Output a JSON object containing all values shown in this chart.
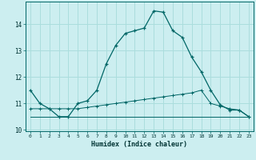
{
  "xlabel": "Humidex (Indice chaleur)",
  "background_color": "#cceef0",
  "grid_color": "#aadddd",
  "line_color": "#006666",
  "xlim": [
    -0.5,
    23.5
  ],
  "ylim": [
    9.95,
    14.85
  ],
  "yticks": [
    10,
    11,
    12,
    13,
    14
  ],
  "xticks": [
    0,
    1,
    2,
    3,
    4,
    5,
    6,
    7,
    8,
    9,
    10,
    11,
    12,
    13,
    14,
    15,
    16,
    17,
    18,
    19,
    20,
    21,
    22,
    23
  ],
  "series1_x": [
    0,
    1,
    2,
    3,
    4,
    5,
    6,
    7,
    8,
    9,
    10,
    11,
    12,
    13,
    14,
    15,
    16,
    17,
    18,
    19,
    20,
    21,
    22,
    23
  ],
  "series1_y": [
    11.5,
    11.0,
    10.8,
    10.5,
    10.5,
    11.0,
    11.1,
    11.5,
    12.5,
    13.2,
    13.65,
    13.75,
    13.85,
    14.5,
    14.45,
    13.75,
    13.5,
    12.75,
    12.2,
    11.5,
    10.95,
    10.75,
    10.75,
    10.5
  ],
  "series2_x": [
    0,
    1,
    2,
    3,
    4,
    5,
    6,
    7,
    8,
    9,
    10,
    11,
    12,
    13,
    14,
    15,
    16,
    17,
    18,
    19,
    20,
    21,
    22,
    23
  ],
  "series2_y": [
    10.8,
    10.8,
    10.8,
    10.8,
    10.8,
    10.8,
    10.85,
    10.9,
    10.95,
    11.0,
    11.05,
    11.1,
    11.15,
    11.2,
    11.25,
    11.3,
    11.35,
    11.4,
    11.5,
    11.0,
    10.9,
    10.8,
    10.75,
    10.5
  ],
  "series3_x": [
    0,
    1,
    2,
    3,
    4,
    5,
    6,
    7,
    8,
    9,
    10,
    11,
    12,
    13,
    14,
    15,
    16,
    17,
    18,
    19,
    20,
    21,
    22,
    23
  ],
  "series3_y": [
    10.5,
    10.5,
    10.5,
    10.5,
    10.5,
    10.5,
    10.5,
    10.5,
    10.5,
    10.5,
    10.5,
    10.5,
    10.5,
    10.5,
    10.5,
    10.5,
    10.5,
    10.5,
    10.5,
    10.5,
    10.5,
    10.5,
    10.5,
    10.5
  ]
}
